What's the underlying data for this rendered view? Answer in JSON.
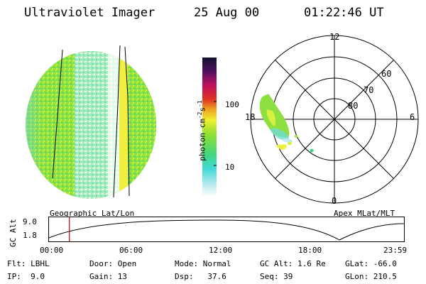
{
  "header": {
    "instrument": "Ultraviolet Imager",
    "date": "25 Aug 00",
    "time": "01:22:46 UT"
  },
  "colorbar": {
    "unit_text": "photon cm",
    "unit_exp1": "-2",
    "unit_mid": "s",
    "unit_exp2": "-1",
    "ticks": [
      "100",
      "10"
    ],
    "scale": "log"
  },
  "left_panel": {
    "caption": "Geographic Lat/Lon"
  },
  "polar_panel": {
    "caption": "Apex MLat/MLT",
    "mlt_labels": {
      "top": "12",
      "left": "18",
      "right": "6",
      "bottom": "0"
    },
    "lat_labels": [
      "60",
      "70",
      "80"
    ]
  },
  "timeline": {
    "ylabel": "GC Alt",
    "yticks": [
      "9.0",
      "1.8"
    ],
    "xticks": [
      "00:00",
      "06:00",
      "12:00",
      "18:00",
      "23:59"
    ],
    "marker_time_hours": 1.38
  },
  "info": {
    "row1": [
      {
        "label": "Flt:",
        "value": "LBHL"
      },
      {
        "label": "Door:",
        "value": "Open"
      },
      {
        "label": "Mode:",
        "value": "Normal"
      },
      {
        "label": "GC Alt:",
        "value": "1.6 Re"
      },
      {
        "label": "GLat:",
        "value": "-66.0"
      }
    ],
    "row2": [
      {
        "label": "IP:",
        "value": "9.0"
      },
      {
        "label": "Gain:",
        "value": "13"
      },
      {
        "label": "Dsp:",
        "value": "37.6"
      },
      {
        "label": "Seq:",
        "value": "39"
      },
      {
        "label": "GLon:",
        "value": "210.5"
      }
    ]
  },
  "colors": {
    "green": "#7fe03a",
    "yellow": "#e8f040",
    "cyan": "#6fe0e8",
    "marker": "#c00000"
  }
}
